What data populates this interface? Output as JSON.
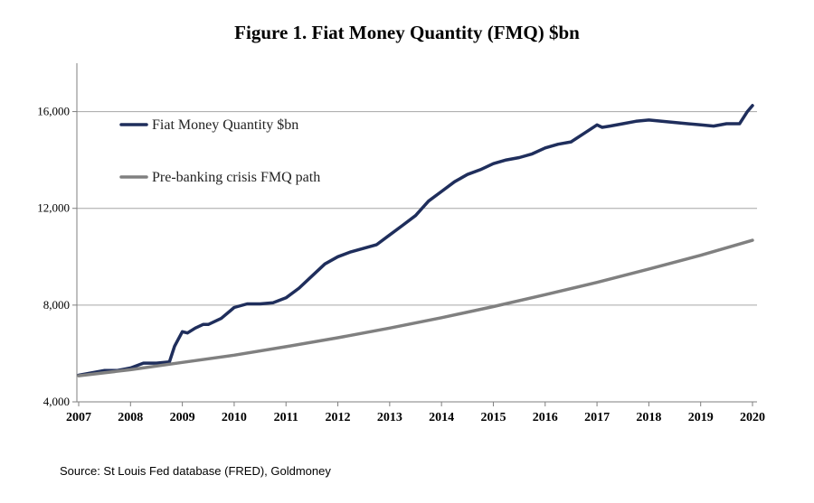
{
  "chart_data": {
    "type": "line",
    "title": "Figure 1. Fiat Money Quantity (FMQ)  $bn",
    "source": "Source: St Louis Fed  database (FRED), Goldmoney",
    "xlabel": "",
    "ylabel": "",
    "xlim": [
      2007,
      2020
    ],
    "ylim": [
      4000,
      18000
    ],
    "y_ticks": [
      "4,000",
      "8,000",
      "12,000",
      "16,000"
    ],
    "y_tick_values": [
      4000,
      8000,
      12000,
      16000
    ],
    "x_ticks": [
      "2007",
      "2008",
      "2009",
      "2010",
      "2011",
      "2012",
      "2013",
      "2014",
      "2015",
      "2016",
      "2017",
      "2018",
      "2019",
      "2020"
    ],
    "grid": "horizontal",
    "legend_position": "top-left",
    "series": [
      {
        "name": "Fiat Money Quantity $bn",
        "color": "#1f2e5c",
        "x": [
          2007.0,
          2007.25,
          2007.5,
          2007.75,
          2008.0,
          2008.25,
          2008.5,
          2008.75,
          2008.85,
          2009.0,
          2009.1,
          2009.25,
          2009.4,
          2009.5,
          2009.75,
          2010.0,
          2010.25,
          2010.5,
          2010.75,
          2011.0,
          2011.25,
          2011.5,
          2011.75,
          2012.0,
          2012.25,
          2012.5,
          2012.75,
          2013.0,
          2013.25,
          2013.5,
          2013.75,
          2014.0,
          2014.25,
          2014.5,
          2014.75,
          2015.0,
          2015.25,
          2015.5,
          2015.75,
          2016.0,
          2016.25,
          2016.5,
          2016.75,
          2017.0,
          2017.1,
          2017.25,
          2017.5,
          2017.75,
          2018.0,
          2018.25,
          2018.5,
          2018.75,
          2019.0,
          2019.25,
          2019.5,
          2019.75,
          2019.9,
          2020.0
        ],
        "values": [
          5100,
          5200,
          5300,
          5300,
          5400,
          5600,
          5600,
          5650,
          6300,
          6900,
          6850,
          7050,
          7200,
          7200,
          7450,
          7900,
          8050,
          8050,
          8100,
          8300,
          8700,
          9200,
          9700,
          10000,
          10200,
          10350,
          10500,
          10900,
          11300,
          11700,
          12300,
          12700,
          13100,
          13400,
          13600,
          13850,
          14000,
          14100,
          14250,
          14500,
          14650,
          14750,
          15100,
          15450,
          15350,
          15400,
          15500,
          15600,
          15650,
          15600,
          15550,
          15500,
          15450,
          15400,
          15500,
          15500,
          16000,
          16250
        ]
      },
      {
        "name": "Pre-banking crisis FMQ path",
        "color": "#808080",
        "x": [
          2007.0,
          2008.0,
          2009.0,
          2010.0,
          2011.0,
          2012.0,
          2013.0,
          2014.0,
          2015.0,
          2016.0,
          2017.0,
          2018.0,
          2019.0,
          2020.0
        ],
        "values": [
          5080,
          5330,
          5630,
          5930,
          6280,
          6650,
          7050,
          7480,
          7940,
          8430,
          8940,
          9490,
          10060,
          10680
        ]
      }
    ]
  }
}
